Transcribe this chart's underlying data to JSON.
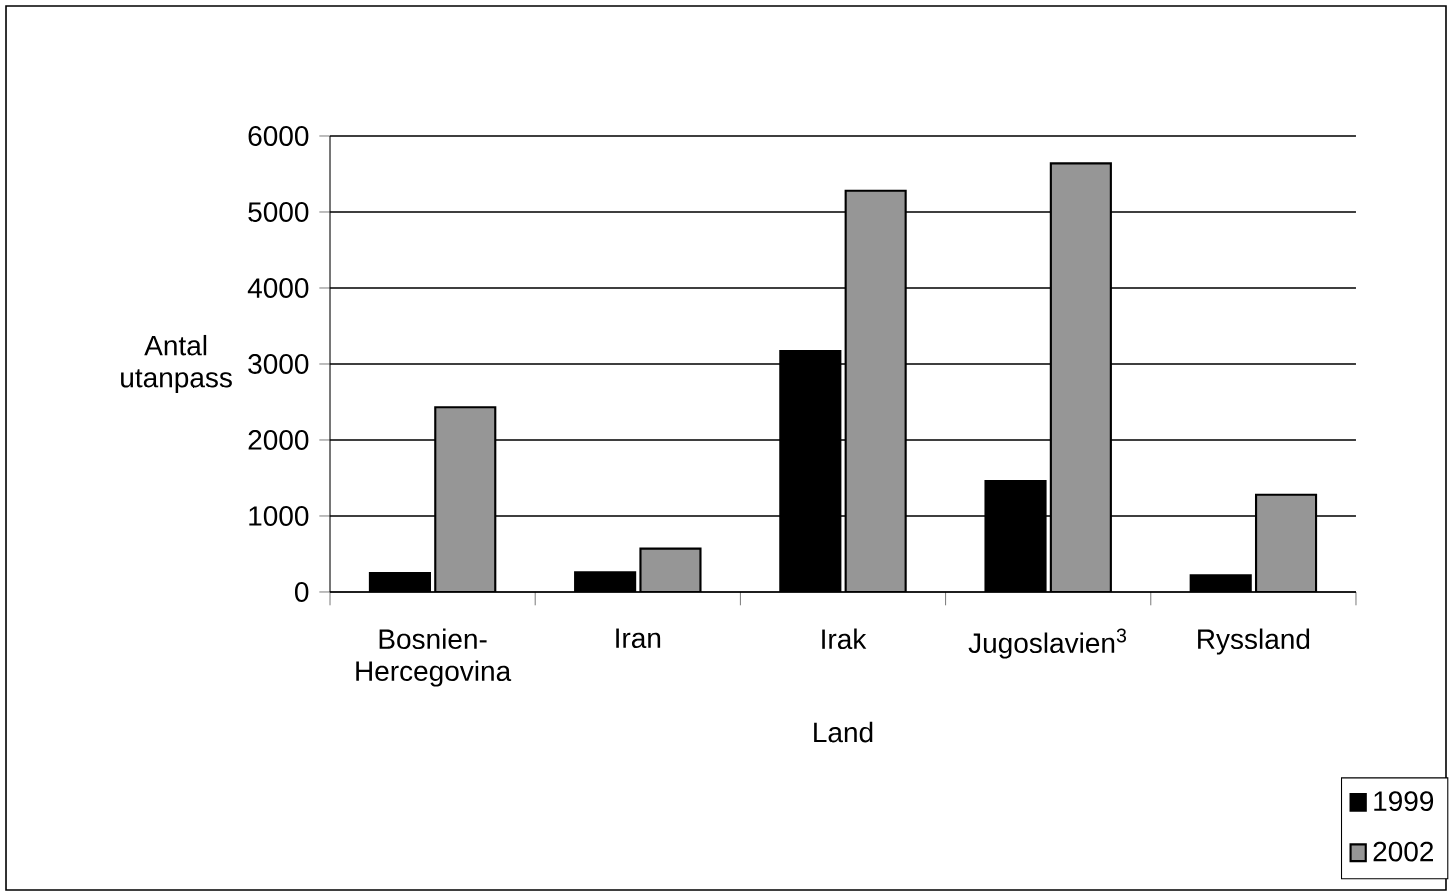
{
  "chart_data": {
    "type": "bar",
    "xlabel": "Land",
    "ylabel": "Antal utanpass",
    "categories": [
      "Bosnien-Hercegovina",
      "Iran",
      "Irak",
      "Jugoslavien$^{3}$",
      "Ryssland"
    ],
    "series": [
      {
        "name": "1999",
        "color": "#000000",
        "values": [
          250,
          260,
          3170,
          1460,
          220
        ]
      },
      {
        "name": "2002",
        "color": "#969696",
        "values": [
          2430,
          570,
          5280,
          5640,
          1280
        ]
      }
    ],
    "ylim": [
      0,
      6000
    ],
    "yticks": [
      0,
      1000,
      2000,
      3000,
      4000,
      5000,
      6000
    ],
    "grid": "y",
    "legend": "bottom right"
  }
}
